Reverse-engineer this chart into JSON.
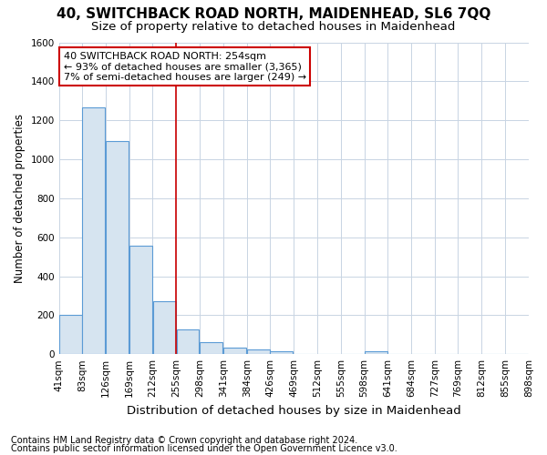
{
  "title": "40, SWITCHBACK ROAD NORTH, MAIDENHEAD, SL6 7QQ",
  "subtitle": "Size of property relative to detached houses in Maidenhead",
  "xlabel": "Distribution of detached houses by size in Maidenhead",
  "ylabel": "Number of detached properties",
  "footer_line1": "Contains HM Land Registry data © Crown copyright and database right 2024.",
  "footer_line2": "Contains public sector information licensed under the Open Government Licence v3.0.",
  "annotation_line1": "40 SWITCHBACK ROAD NORTH: 254sqm",
  "annotation_line2": "← 93% of detached houses are smaller (3,365)",
  "annotation_line3": "7% of semi-detached houses are larger (249) →",
  "subject_value": 254,
  "bar_edges": [
    41,
    83,
    126,
    169,
    212,
    255,
    298,
    341,
    384,
    426,
    469,
    512,
    555,
    598,
    641,
    684,
    727,
    769,
    812,
    855,
    898
  ],
  "bar_heights": [
    200,
    1265,
    1095,
    555,
    270,
    125,
    60,
    35,
    25,
    15,
    0,
    0,
    0,
    15,
    0,
    0,
    0,
    0,
    0,
    0
  ],
  "bar_color": "#d6e4f0",
  "bar_edge_color": "#5b9bd5",
  "vertical_line_color": "#cc0000",
  "grid_color": "#c8d4e3",
  "bg_color": "#ffffff",
  "plot_bg_color": "#ffffff",
  "annotation_box_edge_color": "#cc0000",
  "annotation_box_face_color": "#ffffff",
  "ylim": [
    0,
    1600
  ],
  "yticks": [
    0,
    200,
    400,
    600,
    800,
    1000,
    1200,
    1400,
    1600
  ],
  "title_fontsize": 11,
  "subtitle_fontsize": 9.5,
  "ylabel_fontsize": 8.5,
  "xlabel_fontsize": 9.5,
  "tick_fontsize": 7.5,
  "annotation_fontsize": 8,
  "footer_fontsize": 7
}
